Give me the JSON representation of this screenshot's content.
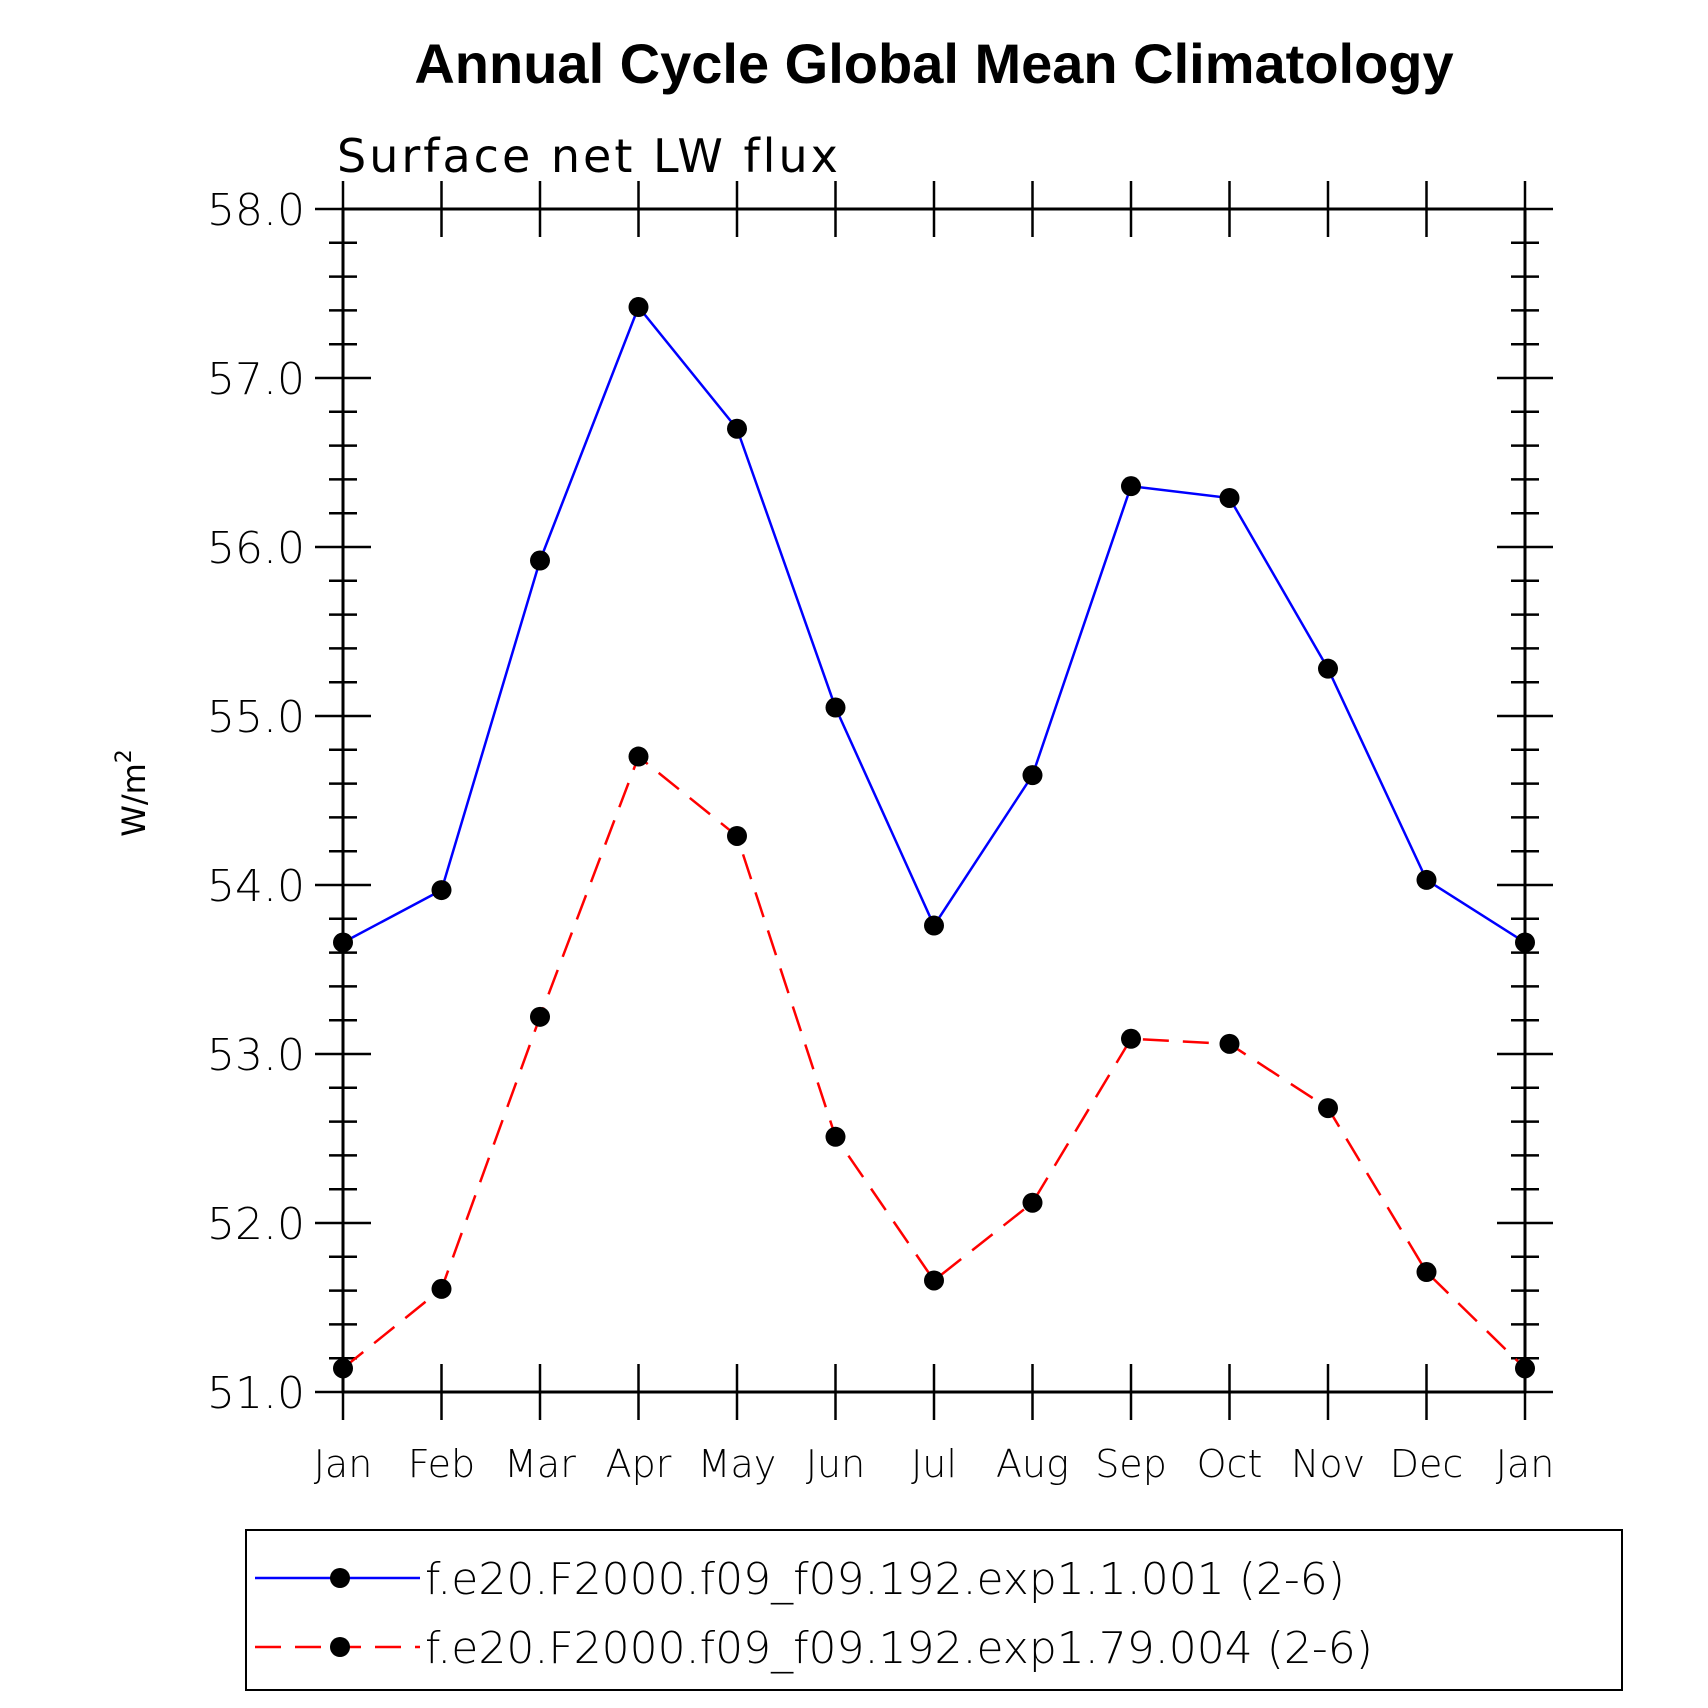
{
  "chart_data": {
    "type": "line",
    "title": "Annual Cycle Global Mean Climatology",
    "subtitle": "Surface net LW flux",
    "xlabel": "",
    "ylabel": "W/m",
    "ylabel_superscript": "2",
    "categories": [
      "Jan",
      "Feb",
      "Mar",
      "Apr",
      "May",
      "Jun",
      "Jul",
      "Aug",
      "Sep",
      "Oct",
      "Nov",
      "Dec",
      "Jan"
    ],
    "ylim": [
      51.0,
      58.0
    ],
    "y_major_ticks": [
      51.0,
      52.0,
      53.0,
      54.0,
      55.0,
      56.0,
      57.0,
      58.0
    ],
    "y_tick_labels": [
      "51.0",
      "52.0",
      "53.0",
      "54.0",
      "55.0",
      "56.0",
      "57.0",
      "58.0"
    ],
    "y_minor_step": 0.2,
    "grid": false,
    "legend_position": "bottom",
    "series": [
      {
        "name": "f.e20.F2000.f09_f09.192.exp1.1.001 (2-6)",
        "color": "#0000ff",
        "dash": "solid",
        "marker_color": "#000000",
        "values": [
          53.66,
          53.97,
          55.92,
          57.42,
          56.7,
          55.05,
          53.76,
          54.65,
          56.36,
          56.29,
          55.28,
          54.03,
          53.66
        ]
      },
      {
        "name": "f.e20.F2000.f09_f09.192.exp1.79.004 (2-6)",
        "color": "#ff0000",
        "dash": "dashed",
        "marker_color": "#000000",
        "values": [
          51.14,
          51.61,
          53.22,
          54.76,
          54.29,
          52.51,
          51.66,
          52.12,
          53.09,
          53.06,
          52.68,
          51.71,
          51.14
        ]
      }
    ]
  }
}
